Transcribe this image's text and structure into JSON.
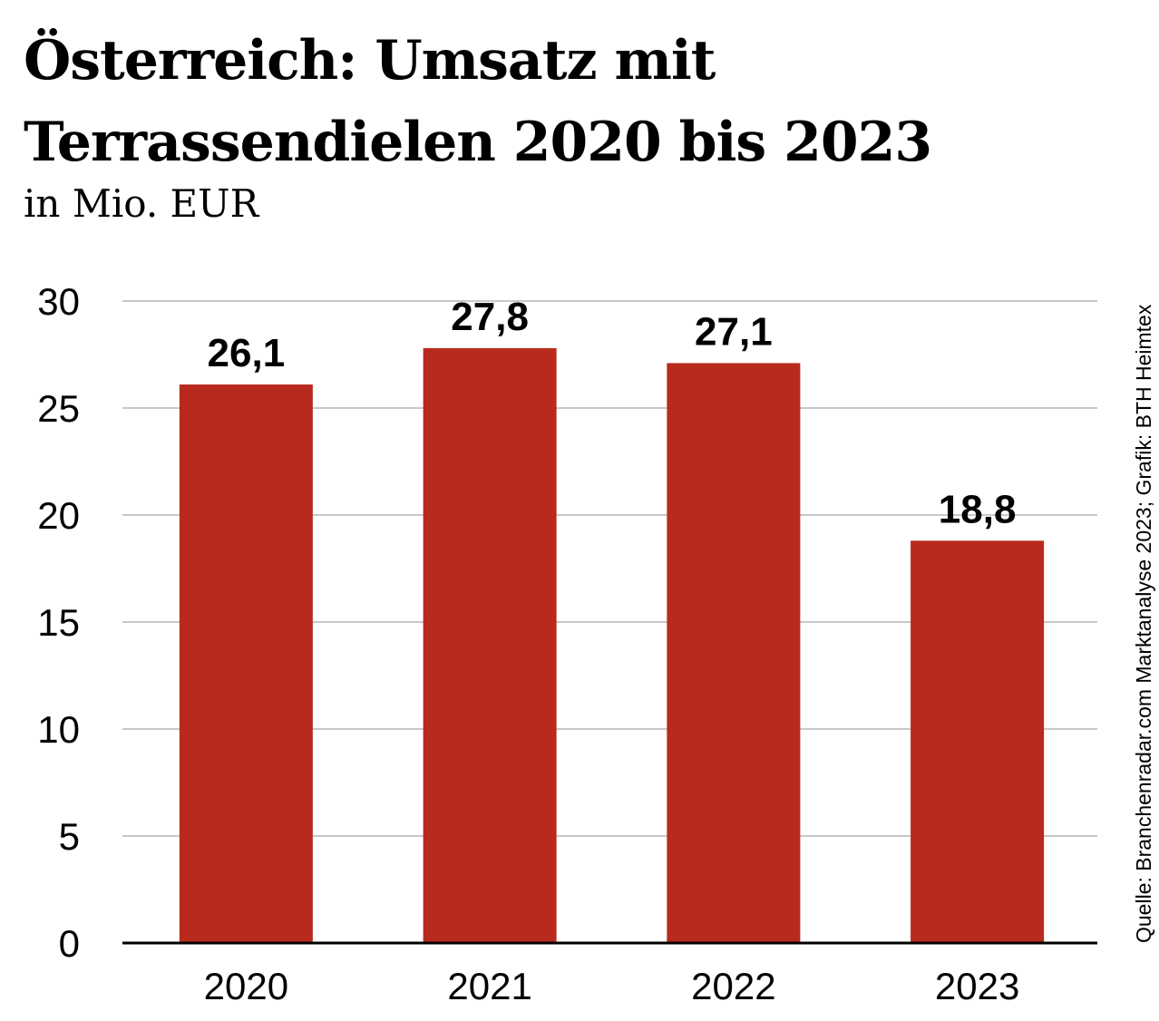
{
  "chart_data": {
    "type": "bar",
    "title": "Österreich: Umsatz mit Terrassendielen 2020 bis 2023",
    "title_lines": [
      "Österreich: Umsatz mit",
      "Terrassendielen 2020 bis 2023"
    ],
    "subtitle": "in Mio. EUR",
    "source": "Quelle: Branchenradar.com Marktanalyse 2023; Grafik: BTH Heimtex",
    "categories": [
      "2020",
      "2021",
      "2022",
      "2023"
    ],
    "values": [
      26.1,
      27.8,
      27.1,
      18.8
    ],
    "data_labels": [
      "26,1",
      "27,8",
      "27,1",
      "18,8"
    ],
    "yticks": [
      0,
      5,
      10,
      15,
      20,
      25,
      30
    ],
    "ylim": [
      0,
      30
    ],
    "xlabel": "",
    "ylabel": "",
    "grid": true,
    "colors": {
      "bar": "#b72a1d",
      "grid": "#c8c8c8",
      "axis": "#000000"
    }
  }
}
